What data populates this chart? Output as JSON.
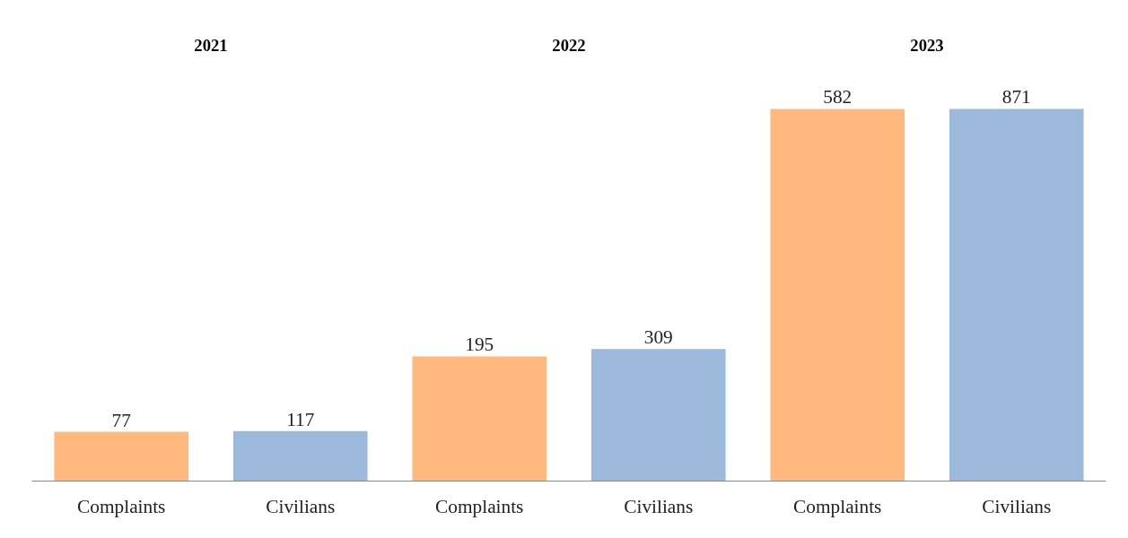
{
  "chart_data": {
    "type": "bar",
    "categories": [
      "Complaints",
      "Civilians",
      "Complaints",
      "Civilians",
      "Complaints",
      "Civilians"
    ],
    "series": [
      {
        "color": "#ffb97f",
        "values": [
          77,
          null,
          195,
          null,
          582,
          null
        ]
      },
      {
        "color": "#9cb9dc",
        "values": [
          null,
          117,
          null,
          309,
          null,
          871
        ],
        "axis": "y2"
      }
    ],
    "annotations": [
      "2021",
      "2022",
      "2023"
    ],
    "data_labels": true,
    "grid": false
  }
}
